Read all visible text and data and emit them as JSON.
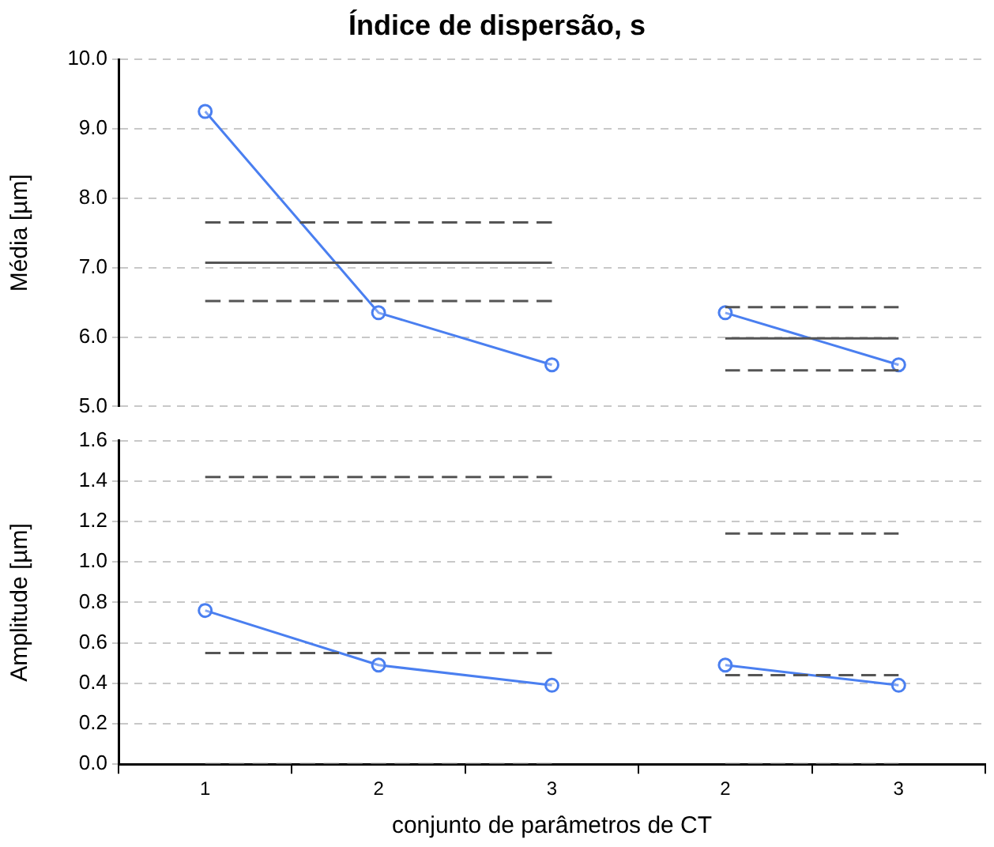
{
  "chart_data": [
    {
      "type": "line",
      "title": "Índice de dispersão, s",
      "ylabel": "Média [µm]",
      "categories": [
        "1",
        "2",
        "3",
        "2",
        "3"
      ],
      "ylim": [
        5,
        10
      ],
      "yticks": [
        {
          "value": 5,
          "label": "5.0"
        },
        {
          "value": 6,
          "label": "6.0"
        },
        {
          "value": 7,
          "label": "7.0"
        },
        {
          "value": 8,
          "label": "8.0"
        },
        {
          "value": 9,
          "label": "9.0"
        },
        {
          "value": 10,
          "label": "10.0"
        }
      ],
      "grid": "y",
      "legend": false,
      "tick_labels": "y",
      "series": [
        {
          "color": "#555555",
          "line_style": "dashed",
          "marker": "none",
          "values": [
            7.65,
            7.65,
            7.65,
            null,
            null
          ]
        },
        {
          "color": "#555555",
          "line_style": "solid",
          "marker": "none",
          "values": [
            7.07,
            7.07,
            7.07,
            null,
            null
          ]
        },
        {
          "color": "#555555",
          "line_style": "dashed",
          "marker": "none",
          "values": [
            6.52,
            6.52,
            6.52,
            null,
            null
          ]
        },
        {
          "color": "#555555",
          "line_style": "dashed",
          "marker": "none",
          "values": [
            null,
            null,
            null,
            6.43,
            6.43
          ]
        },
        {
          "color": "#555555",
          "line_style": "solid",
          "marker": "none",
          "values": [
            null,
            null,
            null,
            5.98,
            5.98
          ]
        },
        {
          "color": "#555555",
          "line_style": "dashed",
          "marker": "none",
          "values": [
            null,
            null,
            null,
            5.52,
            5.52
          ]
        },
        {
          "color": "#4a7ff0",
          "line_style": "solid",
          "marker": "circle",
          "values": [
            9.25,
            6.35,
            5.6,
            null,
            null
          ]
        },
        {
          "color": "#4a7ff0",
          "line_style": "solid",
          "marker": "circle",
          "values": [
            null,
            null,
            null,
            6.35,
            5.6
          ]
        }
      ]
    },
    {
      "type": "line",
      "ylabel": "Amplitude [µm]",
      "xlabel": "conjunto de parâmetros de CT",
      "categories": [
        "1",
        "2",
        "3",
        "2",
        "3"
      ],
      "ylim": [
        0,
        1.6
      ],
      "yticks": [
        {
          "value": 0,
          "label": "0.0"
        },
        {
          "value": 0.2,
          "label": "0.2"
        },
        {
          "value": 0.4,
          "label": "0.4"
        },
        {
          "value": 0.6,
          "label": "0.6"
        },
        {
          "value": 0.8,
          "label": "0.8"
        },
        {
          "value": 1,
          "label": "1.0"
        },
        {
          "value": 1.2,
          "label": "1.2"
        },
        {
          "value": 1.4,
          "label": "1.4"
        },
        {
          "value": 1.6,
          "label": "1.6"
        }
      ],
      "grid": "y",
      "legend": false,
      "series": [
        {
          "color": "#555555",
          "line_style": "dashed",
          "marker": "none",
          "values": [
            1.42,
            1.42,
            1.42,
            null,
            null
          ]
        },
        {
          "color": "#555555",
          "line_style": "dashed",
          "marker": "none",
          "values": [
            0.55,
            0.55,
            0.55,
            null,
            null
          ]
        },
        {
          "color": "#555555",
          "line_style": "dashed",
          "marker": "none",
          "values": [
            0,
            0,
            0,
            null,
            null
          ]
        },
        {
          "color": "#555555",
          "line_style": "dashed",
          "marker": "none",
          "values": [
            null,
            null,
            null,
            1.14,
            1.14
          ]
        },
        {
          "color": "#555555",
          "line_style": "dashed",
          "marker": "none",
          "values": [
            null,
            null,
            null,
            0.44,
            0.44
          ]
        },
        {
          "color": "#555555",
          "line_style": "dashed",
          "marker": "none",
          "values": [
            null,
            null,
            null,
            0,
            0
          ]
        },
        {
          "color": "#4a7ff0",
          "line_style": "solid",
          "marker": "circle",
          "values": [
            0.76,
            0.49,
            0.39,
            null,
            null
          ]
        },
        {
          "color": "#4a7ff0",
          "line_style": "solid",
          "marker": "circle",
          "values": [
            null,
            null,
            null,
            0.49,
            0.39
          ]
        }
      ]
    }
  ]
}
